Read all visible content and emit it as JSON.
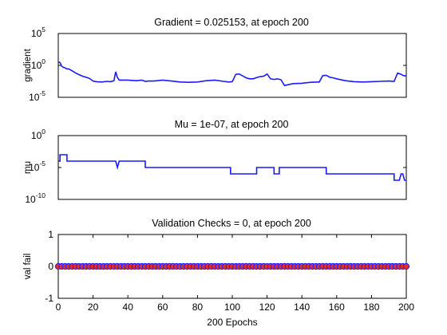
{
  "figure": {
    "title_gradient": "Gradient = 0.025153, at epoch 200",
    "title_mu": "Mu = 1e-07, at epoch 200",
    "title_val": "Validation Checks = 0, at epoch 200",
    "xlabel": "200 Epochs"
  },
  "chart_data": [
    {
      "type": "line",
      "title": "Gradient = 0.025153, at epoch 200",
      "ylabel": "gradient",
      "yscale": "log",
      "ylim_exp": [
        -5,
        5
      ],
      "yticks": [
        {
          "exp": 5,
          "base": "10",
          "sup": "5"
        },
        {
          "exp": 0,
          "base": "10",
          "sup": "0"
        },
        {
          "exp": -5,
          "base": "10",
          "sup": "-5"
        }
      ],
      "xlim": [
        0,
        200
      ],
      "color": "#1a1aff",
      "x": [
        0,
        1,
        2,
        3,
        4,
        5,
        6,
        8,
        10,
        12,
        14,
        16,
        18,
        20,
        22,
        25,
        28,
        30,
        32,
        33,
        34,
        35,
        40,
        45,
        48,
        50,
        52,
        55,
        60,
        65,
        70,
        75,
        80,
        85,
        90,
        95,
        98,
        100,
        102,
        104,
        106,
        108,
        110,
        112,
        114,
        116,
        118,
        120,
        122,
        124,
        126,
        128,
        130,
        135,
        140,
        145,
        150,
        152,
        154,
        156,
        158,
        160,
        165,
        170,
        175,
        180,
        185,
        190,
        193,
        195,
        197,
        198,
        199,
        200
      ],
      "y_log10": [
        0.55,
        0.45,
        -0.15,
        -0.3,
        -0.4,
        -0.55,
        -0.55,
        -0.85,
        -1.2,
        -1.45,
        -1.7,
        -1.85,
        -2.05,
        -2.45,
        -2.55,
        -2.6,
        -2.5,
        -2.55,
        -2.4,
        -1.0,
        -1.9,
        -2.3,
        -2.3,
        -2.4,
        -2.3,
        -2.5,
        -2.45,
        -2.45,
        -2.3,
        -2.45,
        -2.6,
        -2.65,
        -2.6,
        -2.4,
        -2.3,
        -2.5,
        -2.6,
        -2.55,
        -1.4,
        -1.35,
        -1.65,
        -1.95,
        -2.1,
        -2.1,
        -1.9,
        -1.75,
        -1.7,
        -1.35,
        -2.1,
        -2.2,
        -2.1,
        -2.25,
        -3.15,
        -2.85,
        -2.8,
        -2.65,
        -2.6,
        -1.6,
        -1.55,
        -1.85,
        -1.95,
        -2.1,
        -2.4,
        -2.55,
        -2.6,
        -2.55,
        -2.5,
        -2.45,
        -2.5,
        -1.2,
        -1.4,
        -1.55,
        -1.65,
        -1.6
      ]
    },
    {
      "type": "line",
      "title": "Mu = 1e-07, at epoch 200",
      "ylabel": "mu",
      "yscale": "log",
      "ylim_exp": [
        -10,
        0
      ],
      "yticks": [
        {
          "exp": 0,
          "base": "10",
          "sup": "0"
        },
        {
          "exp": -5,
          "base": "10",
          "sup": "-5"
        },
        {
          "exp": -10,
          "base": "10",
          "sup": "-10"
        }
      ],
      "xlim": [
        0,
        200
      ],
      "color": "#1a1aff",
      "x": [
        0,
        1,
        1,
        5,
        5,
        7,
        7,
        33,
        34,
        35,
        35,
        50,
        50,
        99,
        99,
        114,
        114,
        117,
        117,
        124,
        124,
        127,
        127,
        154,
        154,
        193,
        193,
        194,
        195,
        196,
        197,
        198,
        199,
        200
      ],
      "y_log10": [
        -4,
        -4,
        -3,
        -3,
        -4,
        -4,
        -4,
        -4,
        -5,
        -4,
        -4,
        -4,
        -5,
        -5,
        -6,
        -6,
        -5,
        -5,
        -5,
        -5,
        -6,
        -6,
        -5,
        -5,
        -6,
        -6,
        -7,
        -7,
        -7,
        -7,
        -6,
        -6,
        -7,
        -7
      ]
    },
    {
      "type": "scatter",
      "title": "Validation Checks = 0, at epoch 200",
      "ylabel": "val fail",
      "ylim": [
        -1,
        1
      ],
      "yticks": [
        1,
        0,
        -1
      ],
      "xlim": [
        0,
        200
      ],
      "xticks": [
        0,
        20,
        40,
        60,
        80,
        100,
        120,
        140,
        160,
        180,
        200
      ],
      "xlabel": "200 Epochs",
      "line_color": "#1a1aff",
      "marker_color": "#e0302a",
      "marker_step": 2,
      "y": 0
    }
  ]
}
